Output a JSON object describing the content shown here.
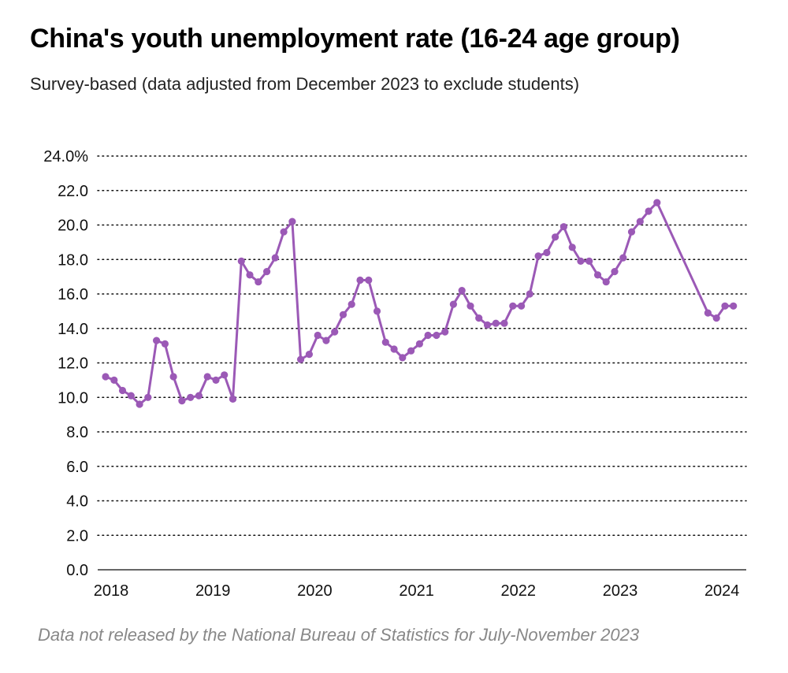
{
  "title": "China's youth unemployment rate (16-24 age group)",
  "subtitle": "Survey-based (data adjusted from December 2023 to exclude students)",
  "footnote": "Data not released by the National Bureau of Statistics for July-November 2023",
  "colors": {
    "series": "#9b59b6",
    "grid": "#111111",
    "axis": "#333333"
  },
  "chart_data": {
    "type": "line",
    "title": "China's youth unemployment rate (16-24 age group)",
    "subtitle": "Survey-based (data adjusted from December 2023 to exclude students)",
    "xlabel": "",
    "ylabel": "",
    "ylim": [
      0,
      24
    ],
    "y_ticks": [
      0,
      2,
      4,
      6,
      8,
      10,
      12,
      14,
      16,
      18,
      20,
      22,
      24
    ],
    "y_tick_labels": [
      "0.0",
      "2.0",
      "4.0",
      "6.0",
      "8.0",
      "10.0",
      "12.0",
      "14.0",
      "16.0",
      "18.0",
      "20.0",
      "22.0",
      "24.0%"
    ],
    "x_tick_labels": [
      "2018",
      "2019",
      "2020",
      "2021",
      "2022",
      "2023",
      "2024"
    ],
    "grid": "horizontal dotted",
    "legend": "none",
    "series": [
      {
        "x": [
          "2018-01",
          "2018-02",
          "2018-03",
          "2018-04",
          "2018-05",
          "2018-06",
          "2018-07",
          "2018-08",
          "2018-09",
          "2018-10",
          "2018-11",
          "2018-12",
          "2019-01",
          "2019-02",
          "2019-03",
          "2019-04",
          "2019-05",
          "2019-06",
          "2019-07",
          "2019-08",
          "2019-09",
          "2019-10",
          "2019-11",
          "2019-12",
          "2020-01",
          "2020-02",
          "2020-03",
          "2020-04",
          "2020-05",
          "2020-06",
          "2020-07",
          "2020-08",
          "2020-09",
          "2020-10",
          "2020-11",
          "2020-12",
          "2021-01",
          "2021-02",
          "2021-03",
          "2021-04",
          "2021-05",
          "2021-06",
          "2021-07",
          "2021-08",
          "2021-09",
          "2021-10",
          "2021-11",
          "2021-12",
          "2022-01",
          "2022-02",
          "2022-03",
          "2022-04",
          "2022-05",
          "2022-06",
          "2022-07",
          "2022-08",
          "2022-09",
          "2022-10",
          "2022-11",
          "2022-12",
          "2023-01",
          "2023-02",
          "2023-03",
          "2023-04",
          "2023-05",
          "2023-06",
          "2023-12",
          "2024-01",
          "2024-02",
          "2024-03"
        ],
        "values": [
          11.2,
          11.0,
          10.4,
          10.1,
          9.6,
          10.0,
          13.3,
          13.1,
          11.2,
          9.8,
          10.0,
          10.1,
          11.2,
          11.0,
          11.3,
          9.9,
          17.9,
          17.1,
          16.7,
          17.3,
          18.1,
          19.6,
          20.2,
          12.2,
          12.5,
          13.6,
          13.3,
          13.8,
          14.8,
          15.4,
          16.8,
          16.8,
          15.0,
          13.2,
          12.8,
          12.3,
          12.7,
          13.1,
          13.6,
          13.6,
          13.8,
          15.4,
          16.2,
          15.3,
          14.6,
          14.2,
          14.3,
          14.3,
          15.3,
          15.3,
          16.0,
          18.2,
          18.4,
          19.3,
          19.9,
          18.7,
          17.9,
          17.9,
          17.1,
          16.7,
          17.3,
          18.1,
          19.6,
          20.2,
          20.8,
          21.3,
          14.9,
          14.6,
          15.3,
          15.3
        ]
      }
    ]
  }
}
